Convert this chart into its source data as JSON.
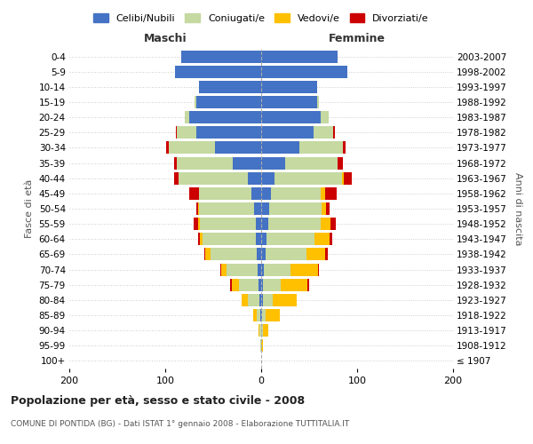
{
  "age_groups": [
    "100+",
    "95-99",
    "90-94",
    "85-89",
    "80-84",
    "75-79",
    "70-74",
    "65-69",
    "60-64",
    "55-59",
    "50-54",
    "45-49",
    "40-44",
    "35-39",
    "30-34",
    "25-29",
    "20-24",
    "15-19",
    "10-14",
    "5-9",
    "0-4"
  ],
  "birth_years": [
    "≤ 1907",
    "1908-1912",
    "1913-1917",
    "1918-1922",
    "1923-1927",
    "1928-1932",
    "1933-1937",
    "1938-1942",
    "1943-1947",
    "1948-1952",
    "1953-1957",
    "1958-1962",
    "1963-1967",
    "1968-1972",
    "1973-1977",
    "1978-1982",
    "1983-1987",
    "1988-1992",
    "1993-1997",
    "1998-2002",
    "2003-2007"
  ],
  "maschi": {
    "celibi": [
      0,
      0,
      0,
      1,
      2,
      3,
      4,
      5,
      6,
      6,
      7,
      10,
      14,
      30,
      48,
      68,
      75,
      68,
      65,
      90,
      83
    ],
    "coniugati": [
      0,
      1,
      2,
      4,
      12,
      20,
      32,
      48,
      55,
      58,
      58,
      55,
      72,
      58,
      48,
      20,
      5,
      1,
      0,
      0,
      0
    ],
    "vedovi": [
      0,
      0,
      1,
      3,
      6,
      8,
      6,
      5,
      3,
      2,
      1,
      0,
      0,
      0,
      0,
      0,
      0,
      0,
      0,
      0,
      0
    ],
    "divorziati": [
      0,
      0,
      0,
      0,
      0,
      1,
      1,
      1,
      2,
      4,
      2,
      10,
      5,
      3,
      3,
      1,
      0,
      0,
      0,
      0,
      0
    ]
  },
  "femmine": {
    "nubili": [
      0,
      0,
      0,
      1,
      2,
      2,
      3,
      5,
      6,
      7,
      8,
      10,
      14,
      25,
      40,
      55,
      62,
      58,
      58,
      90,
      80
    ],
    "coniugate": [
      0,
      0,
      2,
      4,
      10,
      18,
      28,
      42,
      50,
      55,
      55,
      52,
      70,
      55,
      45,
      20,
      8,
      2,
      0,
      0,
      0
    ],
    "vedove": [
      0,
      2,
      5,
      14,
      25,
      28,
      28,
      20,
      15,
      10,
      5,
      5,
      2,
      0,
      0,
      0,
      0,
      0,
      0,
      0,
      0
    ],
    "divorziate": [
      0,
      0,
      0,
      0,
      0,
      2,
      1,
      2,
      3,
      6,
      3,
      12,
      8,
      5,
      3,
      2,
      0,
      0,
      0,
      0,
      0
    ]
  },
  "colors": {
    "celibi": "#4472c4",
    "coniugati": "#c5d9a0",
    "vedovi": "#ffc000",
    "divorziati": "#cc0000"
  },
  "xlim": 200,
  "title": "Popolazione per età, sesso e stato civile - 2008",
  "subtitle": "COMUNE DI PONTIDA (BG) - Dati ISTAT 1° gennaio 2008 - Elaborazione TUTTITALIA.IT",
  "ylabel_left": "Fasce di età",
  "ylabel_right": "Anni di nascita",
  "xlabel_left": "Maschi",
  "xlabel_right": "Femmine",
  "legend_labels": [
    "Celibi/Nubili",
    "Coniugati/e",
    "Vedovi/e",
    "Divorziati/e"
  ],
  "background_color": "#ffffff"
}
